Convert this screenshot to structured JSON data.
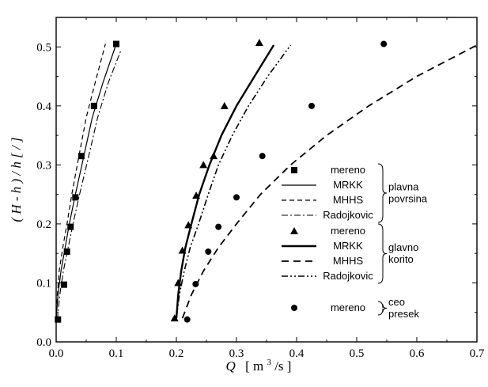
{
  "chart_data": {
    "type": "scatter",
    "xlabel": {
      "symbol": "Q",
      "unit_open": "[ m",
      "unit_exp": "3",
      "unit_close": "/s ]"
    },
    "ylabel": "( H - h ) / h  [ / ]",
    "xlim": [
      0.0,
      0.7
    ],
    "ylim": [
      0.0,
      0.55
    ],
    "x_ticks": [
      "0.0",
      "0.1",
      "0.2",
      "0.3",
      "0.4",
      "0.5",
      "0.6",
      "0.7"
    ],
    "y_ticks": [
      "0.0",
      "0.1",
      "0.2",
      "0.3",
      "0.4",
      "0.5"
    ],
    "grid": false,
    "legend_position": "right",
    "series": [
      {
        "name": "mereno",
        "group": "plavna povrsina",
        "kind": "markers",
        "marker": "square",
        "x": [
          0.003,
          0.013,
          0.018,
          0.024,
          0.032,
          0.042,
          0.063,
          0.1
        ],
        "y": [
          0.038,
          0.097,
          0.153,
          0.195,
          0.245,
          0.315,
          0.4,
          0.505
        ]
      },
      {
        "name": "MRKK",
        "group": "plavna povrsina",
        "kind": "line",
        "style": "solid-thin",
        "x": [
          0.0,
          0.003,
          0.008,
          0.015,
          0.022,
          0.032,
          0.045,
          0.06,
          0.078,
          0.1
        ],
        "y": [
          0.038,
          0.08,
          0.12,
          0.16,
          0.2,
          0.25,
          0.31,
          0.38,
          0.44,
          0.505
        ]
      },
      {
        "name": "MHHS",
        "group": "plavna povrsina",
        "kind": "line",
        "style": "dashed-thin",
        "x": [
          0.0,
          0.002,
          0.005,
          0.011,
          0.018,
          0.026,
          0.037,
          0.05,
          0.065,
          0.082
        ],
        "y": [
          0.038,
          0.08,
          0.12,
          0.16,
          0.2,
          0.25,
          0.31,
          0.38,
          0.44,
          0.505
        ]
      },
      {
        "name": "Radojkovic",
        "group": "plavna povrsina",
        "kind": "line",
        "style": "dashdot-thin",
        "x": [
          0.002,
          0.006,
          0.012,
          0.02,
          0.028,
          0.039,
          0.053,
          0.069,
          0.087,
          0.108
        ],
        "y": [
          0.038,
          0.08,
          0.12,
          0.16,
          0.2,
          0.25,
          0.31,
          0.38,
          0.44,
          0.495
        ]
      },
      {
        "name": "mereno",
        "group": "glavno korito",
        "kind": "markers",
        "marker": "triangle",
        "x": [
          0.197,
          0.203,
          0.21,
          0.22,
          0.233,
          0.245,
          0.262,
          0.28,
          0.338
        ],
        "y": [
          0.04,
          0.1,
          0.155,
          0.198,
          0.248,
          0.3,
          0.315,
          0.4,
          0.507
        ]
      },
      {
        "name": "MRKK",
        "group": "glavno korito",
        "kind": "line",
        "style": "solid-thick",
        "x": [
          0.2,
          0.203,
          0.208,
          0.215,
          0.225,
          0.238,
          0.255,
          0.275,
          0.3,
          0.33,
          0.362
        ],
        "y": [
          0.04,
          0.08,
          0.12,
          0.16,
          0.2,
          0.25,
          0.3,
          0.35,
          0.4,
          0.45,
          0.503
        ]
      },
      {
        "name": "MHHS",
        "group": "glavno korito",
        "kind": "line",
        "style": "dashed-thick",
        "x": [
          0.21,
          0.225,
          0.245,
          0.27,
          0.3,
          0.34,
          0.39,
          0.45,
          0.52,
          0.6,
          0.7
        ],
        "y": [
          0.04,
          0.08,
          0.12,
          0.16,
          0.2,
          0.25,
          0.3,
          0.35,
          0.4,
          0.45,
          0.503
        ]
      },
      {
        "name": "Radojkovic",
        "group": "glavno korito",
        "kind": "line",
        "style": "dashdotdot-thin",
        "x": [
          0.2,
          0.205,
          0.213,
          0.223,
          0.237,
          0.253,
          0.27,
          0.293,
          0.32,
          0.352,
          0.39
        ],
        "y": [
          0.04,
          0.08,
          0.12,
          0.16,
          0.2,
          0.25,
          0.3,
          0.35,
          0.4,
          0.45,
          0.503
        ]
      },
      {
        "name": "mereno",
        "group": "ceo presek",
        "kind": "markers",
        "marker": "circle",
        "x": [
          0.218,
          0.232,
          0.253,
          0.27,
          0.3,
          0.343,
          0.425,
          0.545
        ],
        "y": [
          0.038,
          0.098,
          0.153,
          0.195,
          0.245,
          0.315,
          0.4,
          0.505
        ]
      }
    ],
    "legend_groups": [
      {
        "label_lines": [
          "plavna",
          "povrsina"
        ]
      },
      {
        "label_lines": [
          "glavno",
          "korito"
        ]
      },
      {
        "label_lines": [
          "ceo",
          "presek"
        ]
      }
    ]
  }
}
